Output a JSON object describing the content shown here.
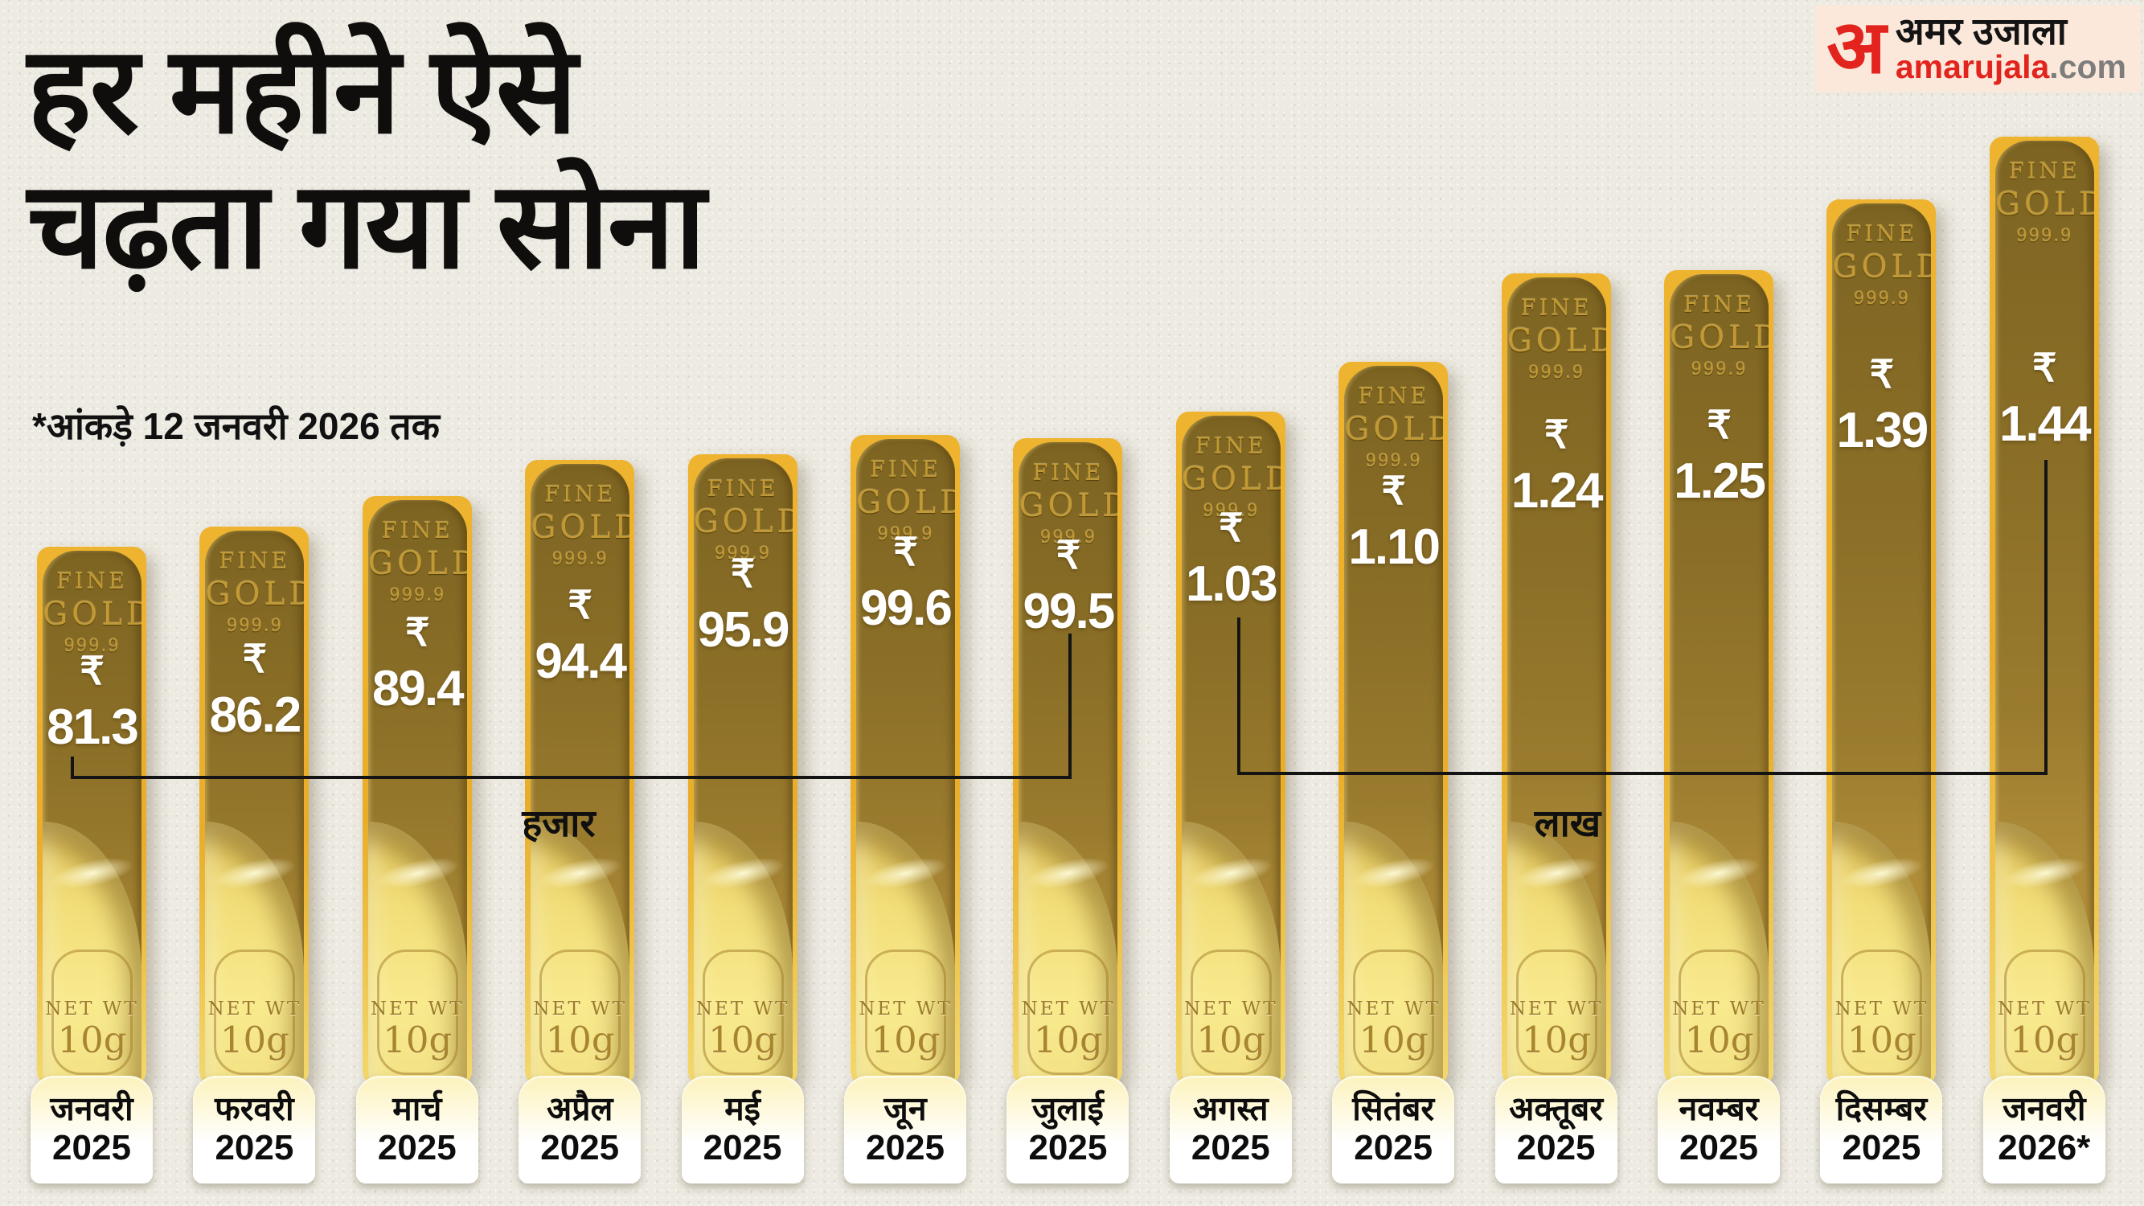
{
  "header": {
    "title_line1": "हर महीने ऐसे",
    "title_line2": "चढ़ता गया सोना",
    "footnote": "*आंकड़े 12 जनवरी 2026 तक"
  },
  "logo": {
    "initial": "अ",
    "brand_hindi": "अमर उजाला",
    "brand_en": "amarujala",
    "brand_tld": ".com"
  },
  "bar_stamp": {
    "fine": "FINE",
    "gold": "GOLD",
    "purity": "999.9",
    "net_wt": "NET WT",
    "weight": "10g",
    "currency": "₹"
  },
  "unit_labels": {
    "thousand": "हजार",
    "lakh": "लाख"
  },
  "chart_data": {
    "type": "bar",
    "title": "हर महीने ऐसे चढ़ता गया सोना",
    "footnote": "*आंकड़े 12 जनवरी 2026 तक",
    "unit_brackets": [
      {
        "label": "हजार",
        "from": "जनवरी 2025",
        "to": "जुलाई 2025"
      },
      {
        "label": "लाख",
        "from": "अगस्त 2025",
        "to": "जनवरी 2026*"
      }
    ],
    "categories": [
      "जनवरी 2025",
      "फरवरी 2025",
      "मार्च 2025",
      "अप्रैल 2025",
      "मई 2025",
      "जून 2025",
      "जुलाई 2025",
      "अगस्त 2025",
      "सितंबर 2025",
      "अक्तूबर 2025",
      "नवम्बर 2025",
      "दिसम्बर 2025",
      "जनवरी 2026*"
    ],
    "bars": [
      {
        "month": "जनवरी",
        "year": "2025",
        "display_value": "81.3",
        "unit": "हजार",
        "value_thousand": 81.3
      },
      {
        "month": "फरवरी",
        "year": "2025",
        "display_value": "86.2",
        "unit": "हजार",
        "value_thousand": 86.2
      },
      {
        "month": "मार्च",
        "year": "2025",
        "display_value": "89.4",
        "unit": "हजार",
        "value_thousand": 89.4
      },
      {
        "month": "अप्रैल",
        "year": "2025",
        "display_value": "94.4",
        "unit": "हजार",
        "value_thousand": 94.4
      },
      {
        "month": "मई",
        "year": "2025",
        "display_value": "95.9",
        "unit": "हजार",
        "value_thousand": 95.9
      },
      {
        "month": "जून",
        "year": "2025",
        "display_value": "99.6",
        "unit": "हजार",
        "value_thousand": 99.6
      },
      {
        "month": "जुलाई",
        "year": "2025",
        "display_value": "99.5",
        "unit": "हजार",
        "value_thousand": 99.5
      },
      {
        "month": "अगस्त",
        "year": "2025",
        "display_value": "1.03",
        "unit": "लाख",
        "value_thousand": 103
      },
      {
        "month": "सितंबर",
        "year": "2025",
        "display_value": "1.10",
        "unit": "लाख",
        "value_thousand": 110
      },
      {
        "month": "अक्तूबर",
        "year": "2025",
        "display_value": "1.24",
        "unit": "लाख",
        "value_thousand": 124
      },
      {
        "month": "नवम्बर",
        "year": "2025",
        "display_value": "1.25",
        "unit": "लाख",
        "value_thousand": 125
      },
      {
        "month": "दिसम्बर",
        "year": "2025",
        "display_value": "1.39",
        "unit": "लाख",
        "value_thousand": 139
      },
      {
        "month": "जनवरी",
        "year": "2026*",
        "display_value": "1.44",
        "unit": "लाख",
        "value_thousand": 144
      }
    ],
    "colors": {
      "bar_frame_gold": "#e9ad29",
      "bar_dark_bronze": "#8b6f27",
      "bar_light_gold": "#f9ea8e",
      "value_text": "#ffffff",
      "bracket_line": "#141414",
      "background_paper": "#edeae2",
      "logo_red": "#e3231d",
      "logo_gray": "#7d7d7d",
      "logo_bg": "#fbe8da"
    }
  }
}
